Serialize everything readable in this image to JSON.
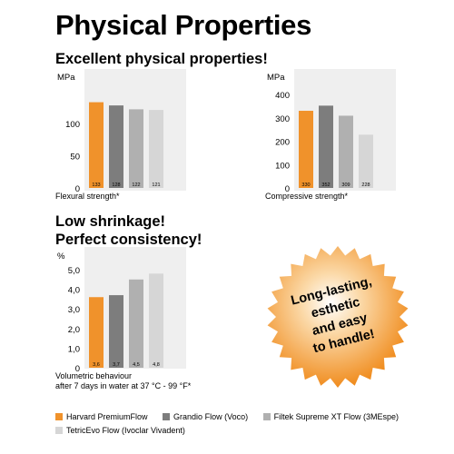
{
  "page": {
    "title": "Physical Properties",
    "heading1": "Excellent physical properties!",
    "heading2_line1": "Low shrinkage!",
    "heading2_line2": "Perfect consistency!",
    "badge_lines": [
      "Long-lasting,",
      "esthetic",
      "and easy",
      "to handle!"
    ]
  },
  "colors": {
    "harvard": "#f0922b",
    "grandio": "#7d7d7d",
    "filtek": "#b0b0b0",
    "tetric": "#d6d6d6",
    "panel": "#efefef",
    "badge": "#f39a2c"
  },
  "legend": [
    {
      "label": "Harvard PremiumFlow",
      "color": "#f0922b"
    },
    {
      "label": "Grandio Flow (Voco)",
      "color": "#7d7d7d"
    },
    {
      "label": "Filtek Supreme XT Flow (3MEspe)",
      "color": "#b0b0b0"
    },
    {
      "label": "TetricEvo Flow (Ivoclar Vivadent)",
      "color": "#d6d6d6"
    }
  ],
  "chart_data": [
    {
      "type": "bar",
      "unit": "MPa",
      "caption": "Flexural strength*",
      "categories": [
        "Harvard PremiumFlow",
        "Grandio Flow (Voco)",
        "Filtek Supreme XT Flow (3MEspe)",
        "TetricEvo Flow (Ivoclar Vivadent)"
      ],
      "values": [
        133,
        128,
        122,
        121
      ],
      "value_labels": [
        "133",
        "128",
        "122",
        "121"
      ],
      "ylim": [
        0,
        150
      ],
      "yticks": [
        0,
        50,
        100
      ],
      "ytick_labels": [
        "0",
        "50",
        "100"
      ]
    },
    {
      "type": "bar",
      "unit": "MPa",
      "caption": "Compressive strength*",
      "categories": [
        "Harvard PremiumFlow",
        "Grandio Flow (Voco)",
        "Filtek Supreme XT Flow (3MEspe)",
        "TetricEvo Flow (Ivoclar Vivadent)"
      ],
      "values": [
        330,
        352,
        309,
        228
      ],
      "value_labels": [
        "330",
        "352",
        "309",
        "228"
      ],
      "ylim": [
        0,
        430
      ],
      "yticks": [
        0,
        100,
        200,
        300,
        400
      ],
      "ytick_labels": [
        "0",
        "100",
        "200",
        "300",
        "400"
      ]
    },
    {
      "type": "bar",
      "unit": "%",
      "caption_lines": [
        "Volumetric behaviour",
        "after 7 days in water at 37 °C - 99 °F*"
      ],
      "categories": [
        "Harvard PremiumFlow",
        "Grandio Flow (Voco)",
        "Filtek Supreme XT Flow (3MEspe)",
        "TetricEvo Flow (Ivoclar Vivadent)"
      ],
      "values": [
        3.6,
        3.7,
        4.5,
        4.8
      ],
      "value_labels": [
        "3,6",
        "3,7",
        "4,5",
        "4,8"
      ],
      "ylim": [
        0,
        5.5
      ],
      "yticks": [
        0,
        1,
        2,
        3,
        4,
        5
      ],
      "ytick_labels": [
        "0",
        "1,0",
        "2,0",
        "3,0",
        "4,0",
        "5,0"
      ]
    }
  ]
}
